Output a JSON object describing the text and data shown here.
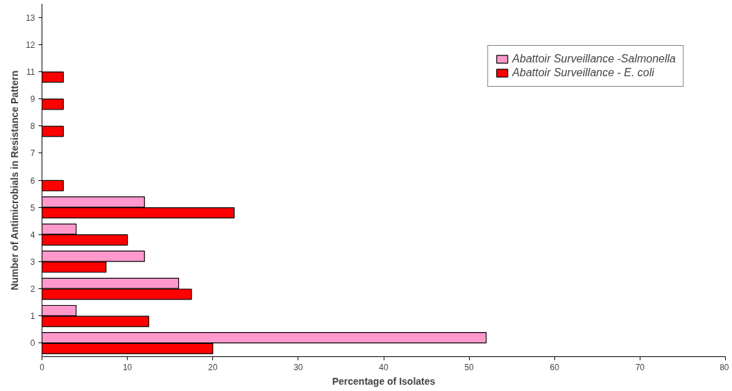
{
  "chart_data": {
    "type": "bar",
    "orientation": "horizontal",
    "xlabel": "Percentage of Isolates",
    "ylabel": "Number of Antimicrobials in Resistance Pattern",
    "categories": [
      "13",
      "12",
      "11",
      "9",
      "8",
      "7",
      "6",
      "5",
      "4",
      "3",
      "2",
      "1",
      "0"
    ],
    "series": [
      {
        "name": "Abattoir Surveillance -Salmonella",
        "color": "#ff99cc",
        "values": [
          null,
          null,
          null,
          null,
          null,
          null,
          null,
          12,
          4,
          12,
          16,
          4,
          52
        ]
      },
      {
        "name": "Abattoir Surveillance - E. coli",
        "color": "#ff0000",
        "values": [
          null,
          null,
          2.5,
          2.5,
          2.5,
          null,
          2.5,
          22.5,
          10,
          7.5,
          17.5,
          12.5,
          20
        ]
      }
    ],
    "xlim": [
      0,
      80
    ],
    "xticks": [
      0,
      10,
      20,
      30,
      40,
      50,
      60,
      70,
      80
    ],
    "grid": false,
    "legend": "top right"
  }
}
